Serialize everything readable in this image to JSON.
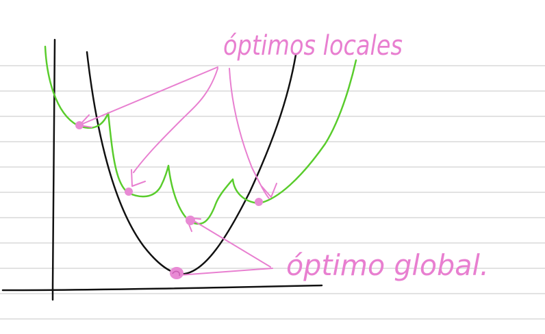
{
  "colors": {
    "paper": "#ffffff",
    "ruled_line": "#d9d9d9",
    "axis_ink": "#111111",
    "green_curve": "#59cc2c",
    "pink_annotation": "#e87fd0",
    "pink_dot": "#e88ad4"
  },
  "labels": {
    "local_optima": "óptimos locales",
    "global_optimum": "óptimo global."
  }
}
